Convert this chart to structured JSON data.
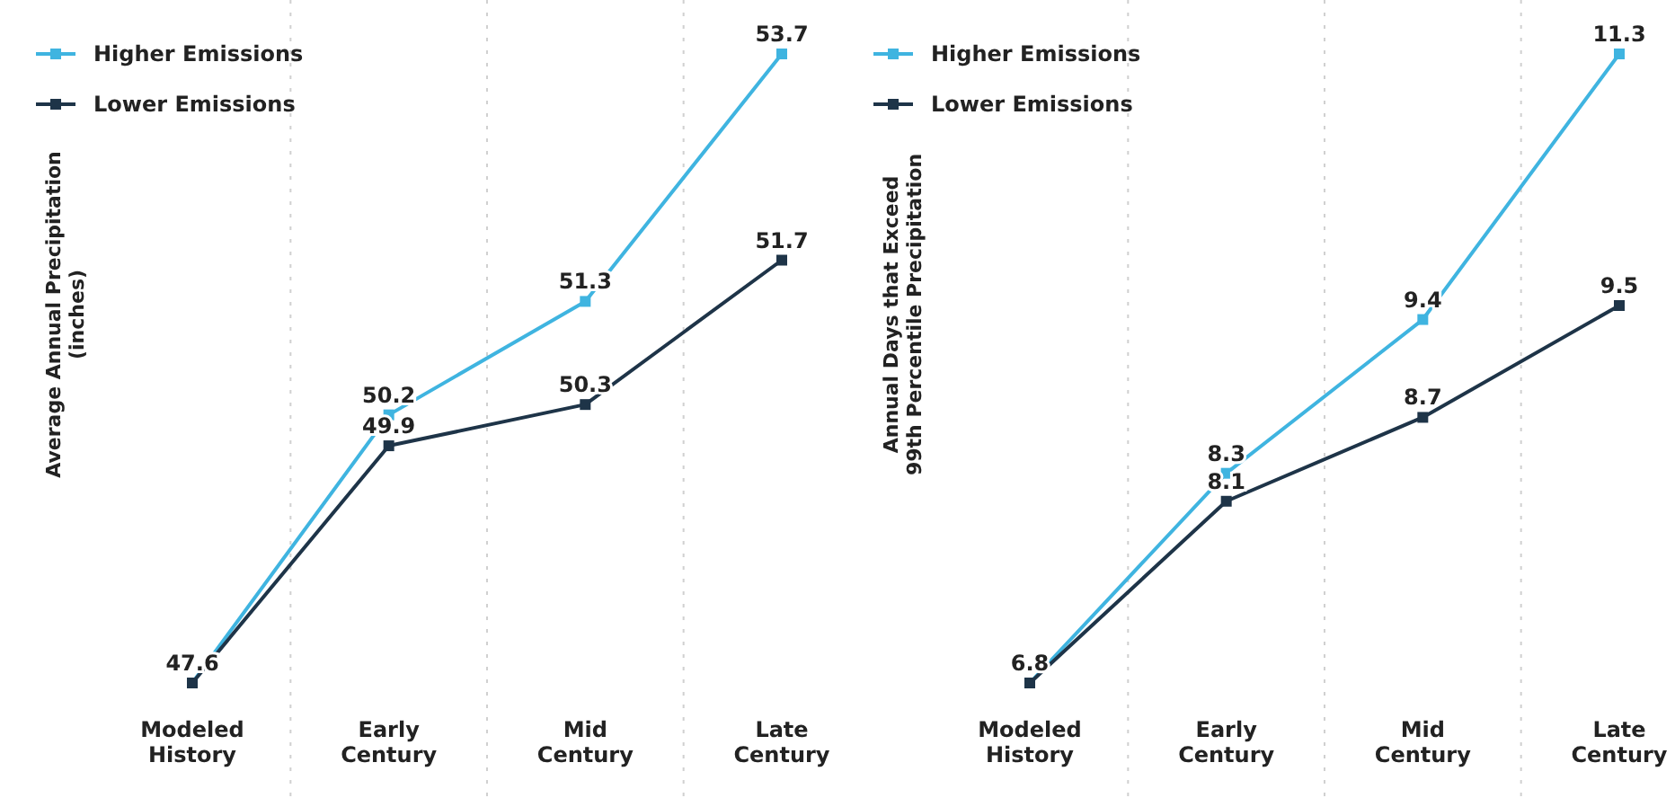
{
  "chart_data": [
    {
      "type": "line",
      "ylabel": "Average Annual Precipitation\n(inches)",
      "categories": [
        "Modeled History",
        "Early Century",
        "Mid Century",
        "Late Century"
      ],
      "legend": "top left",
      "marker": "square",
      "grid": "x",
      "series": [
        {
          "name": "Higher Emissions",
          "color": "#3fb4e0",
          "values": [
            47.6,
            50.2,
            51.3,
            53.7
          ],
          "value_labels": [
            "47.6",
            "50.2",
            "51.3",
            "53.7"
          ]
        },
        {
          "name": "Lower Emissions",
          "color": "#1e3448",
          "values": [
            47.6,
            49.9,
            50.3,
            51.7
          ],
          "value_labels": [
            null,
            "49.9",
            "50.3",
            "51.7"
          ]
        }
      ]
    },
    {
      "type": "line",
      "ylabel": "Annual Days that Exceed\n99th Percentile Precipitation",
      "categories": [
        "Modeled History",
        "Early Century",
        "Mid Century",
        "Late Century"
      ],
      "legend": "top left",
      "marker": "square",
      "grid": "x",
      "series": [
        {
          "name": "Higher Emissions",
          "color": "#3fb4e0",
          "values": [
            6.8,
            8.3,
            9.4,
            11.3
          ],
          "value_labels": [
            "6.8",
            "8.3",
            "9.4",
            "11.3"
          ]
        },
        {
          "name": "Lower Emissions",
          "color": "#1e3448",
          "values": [
            6.8,
            8.1,
            8.7,
            9.5
          ],
          "value_labels": [
            null,
            "8.1",
            "8.7",
            "9.5"
          ]
        }
      ]
    }
  ]
}
